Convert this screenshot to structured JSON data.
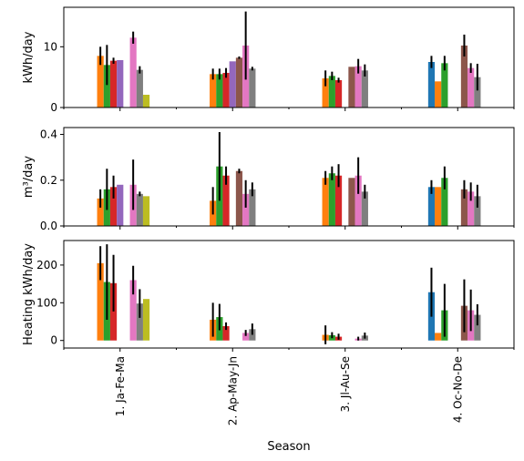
{
  "figure": {
    "xlabel": "Season"
  },
  "palette": [
    "#1f77b4",
    "#ff7f0e",
    "#2ca02c",
    "#d62728",
    "#9467bd",
    "#8c564b",
    "#e377c2",
    "#7f7f7f",
    "#bcbd22"
  ],
  "chart_data": [
    {
      "type": "bar",
      "ylabel": "kWh/day",
      "ylim": [
        0,
        16.5
      ],
      "yticks": [
        0,
        10
      ],
      "categories": [
        "1. Ja-Fe-Ma",
        "2. Ap-May-Jn",
        "3. Jl-Au-Se",
        "4. Oc-No-De"
      ],
      "series": [
        {
          "values": [
            null,
            null,
            null,
            7.5
          ],
          "err": [
            null,
            null,
            null,
            1.0
          ]
        },
        {
          "values": [
            8.5,
            5.5,
            4.8,
            4.3
          ],
          "err": [
            1.5,
            0.9,
            1.3,
            0
          ]
        },
        {
          "values": [
            7.0,
            5.5,
            5.2,
            7.3
          ],
          "err": [
            3.3,
            0.9,
            0.7,
            1.2
          ]
        },
        {
          "values": [
            7.7,
            5.7,
            4.5,
            null
          ],
          "err": [
            0.5,
            0.8,
            0.4,
            null
          ]
        },
        {
          "values": [
            7.8,
            7.6,
            null,
            null
          ],
          "err": [
            0,
            0,
            null,
            null
          ]
        },
        {
          "values": [
            null,
            8.2,
            6.7,
            10.2
          ],
          "err": [
            null,
            0.2,
            0,
            1.8
          ]
        },
        {
          "values": [
            11.5,
            10.2,
            6.8,
            6.5
          ],
          "err": [
            1.0,
            5.6,
            1.2,
            0.8
          ]
        },
        {
          "values": [
            6.2,
            6.4,
            6.1,
            5.0
          ],
          "err": [
            0.6,
            0.3,
            1.0,
            2.2
          ]
        },
        {
          "values": [
            2.1,
            null,
            null,
            null
          ],
          "err": [
            0,
            null,
            null,
            null
          ]
        }
      ]
    },
    {
      "type": "bar",
      "ylabel": "m³/day",
      "ylim": [
        0,
        0.43
      ],
      "yticks": [
        0.0,
        0.2,
        0.4
      ],
      "categories": [
        "1. Ja-Fe-Ma",
        "2. Ap-May-Jn",
        "3. Jl-Au-Se",
        "4. Oc-No-De"
      ],
      "series": [
        {
          "values": [
            null,
            null,
            null,
            0.17
          ],
          "err": [
            null,
            null,
            null,
            0.03
          ]
        },
        {
          "values": [
            0.12,
            0.11,
            0.21,
            0.17
          ],
          "err": [
            0.04,
            0.06,
            0.03,
            0
          ]
        },
        {
          "values": [
            0.16,
            0.26,
            0.23,
            0.21
          ],
          "err": [
            0.09,
            0.15,
            0.03,
            0.05
          ]
        },
        {
          "values": [
            0.17,
            0.22,
            0.22,
            null
          ],
          "err": [
            0.05,
            0.04,
            0.05,
            null
          ]
        },
        {
          "values": [
            0.18,
            null,
            null,
            null
          ],
          "err": [
            0,
            null,
            null,
            null
          ]
        },
        {
          "values": [
            null,
            0.24,
            0.21,
            0.16
          ],
          "err": [
            null,
            0.01,
            0,
            0.04
          ]
        },
        {
          "values": [
            0.18,
            0.14,
            0.22,
            0.15
          ],
          "err": [
            0.11,
            0.06,
            0.08,
            0.04
          ]
        },
        {
          "values": [
            0.14,
            0.16,
            0.15,
            0.13
          ],
          "err": [
            0.01,
            0.03,
            0.03,
            0.05
          ]
        },
        {
          "values": [
            0.13,
            null,
            null,
            null
          ],
          "err": [
            0,
            null,
            null,
            null
          ]
        }
      ]
    },
    {
      "type": "bar",
      "ylabel": "Heating kWh/day",
      "ylim": [
        -20,
        265
      ],
      "yticks": [
        0,
        100,
        200
      ],
      "categories": [
        "1. Ja-Fe-Ma",
        "2. Ap-May-Jn",
        "3. Jl-Au-Se",
        "4. Oc-No-De"
      ],
      "series": [
        {
          "values": [
            null,
            null,
            null,
            128
          ],
          "err": [
            null,
            null,
            null,
            65
          ]
        },
        {
          "values": [
            205,
            55,
            15,
            20
          ],
          "err": [
            45,
            45,
            25,
            0
          ]
        },
        {
          "values": [
            155,
            62,
            14,
            80
          ],
          "err": [
            100,
            35,
            8,
            70
          ]
        },
        {
          "values": [
            152,
            38,
            10,
            null
          ],
          "err": [
            75,
            10,
            8,
            null
          ]
        },
        {
          "values": [
            null,
            null,
            null,
            null
          ],
          "err": [
            null,
            null,
            null,
            null
          ]
        },
        {
          "values": [
            null,
            null,
            null,
            92
          ],
          "err": [
            null,
            null,
            null,
            70
          ]
        },
        {
          "values": [
            160,
            20,
            5,
            80
          ],
          "err": [
            38,
            8,
            5,
            55
          ]
        },
        {
          "values": [
            98,
            30,
            13,
            68
          ],
          "err": [
            38,
            15,
            8,
            28
          ]
        },
        {
          "values": [
            110,
            null,
            null,
            null
          ],
          "err": [
            0,
            null,
            null,
            null
          ]
        }
      ]
    }
  ]
}
